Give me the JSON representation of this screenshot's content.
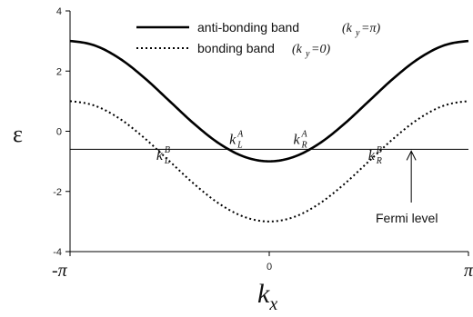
{
  "chart_data": {
    "type": "line",
    "xlabel": "kx",
    "ylabel": "ε",
    "xlim": [
      -3.14159,
      3.14159
    ],
    "ylim": [
      -4,
      4
    ],
    "x_ticks": [
      {
        "value": -3.14159,
        "label": "-π"
      },
      {
        "value": 0,
        "label": "0"
      },
      {
        "value": 3.14159,
        "label": "π"
      }
    ],
    "y_ticks": [
      {
        "value": -4,
        "label": "-4"
      },
      {
        "value": -2,
        "label": "-2"
      },
      {
        "value": 0,
        "label": "0"
      },
      {
        "value": 2,
        "label": "2"
      },
      {
        "value": 4,
        "label": "4"
      }
    ],
    "x": [
      -3.14159,
      -2.74889,
      -2.35619,
      -1.9635,
      -1.5708,
      -1.1781,
      -0.7854,
      -0.3927,
      0,
      0.3927,
      0.7854,
      1.1781,
      1.5708,
      1.9635,
      2.35619,
      2.74889,
      3.14159
    ],
    "series": [
      {
        "name": "anti-bonding band",
        "condition": "(k",
        "condition_sub": "y",
        "condition_rest": "=π)",
        "style": "solid",
        "values": [
          3.0,
          2.848,
          2.414,
          1.765,
          1.0,
          0.235,
          -0.414,
          -0.848,
          -1.0,
          -0.848,
          -0.414,
          0.235,
          1.0,
          1.765,
          2.414,
          2.848,
          3.0
        ]
      },
      {
        "name": "bonding band",
        "condition": "(k",
        "condition_sub": "y",
        "condition_rest": "=0)",
        "style": "dotted",
        "values": [
          1.0,
          0.848,
          0.414,
          -0.235,
          -1.0,
          -1.765,
          -2.414,
          -2.848,
          -3.0,
          -2.848,
          -2.414,
          -1.765,
          -1.0,
          -0.235,
          0.414,
          0.848,
          1.0
        ]
      }
    ],
    "fermi_level": {
      "value": -0.6,
      "label": "Fermi level",
      "arrow_x": 2.24
    },
    "annotations": [
      {
        "base": "k",
        "sub": "L",
        "sup": "A",
        "x": -0.63,
        "y": -0.42
      },
      {
        "base": "k",
        "sub": "R",
        "sup": "A",
        "x": 0.38,
        "y": -0.42
      },
      {
        "base": "k",
        "sub": "L",
        "sup": "B",
        "x": -1.78,
        "y": -0.95
      },
      {
        "base": "k",
        "sub": "R",
        "sup": "B",
        "x": 1.56,
        "y": -0.95
      }
    ],
    "legend_position": "top-center",
    "grid": false
  }
}
